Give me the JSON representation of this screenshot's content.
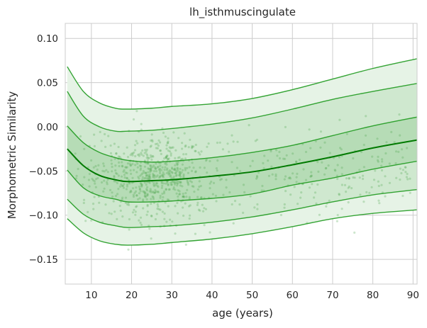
{
  "chart_data": {
    "type": "line",
    "title": "lh_isthmuscingulate",
    "xlabel": "age (years)",
    "ylabel": "Morphometric Similarity",
    "xlim": [
      3.5,
      91
    ],
    "ylim": [
      -0.178,
      0.117
    ],
    "x_ticks": [
      10,
      20,
      30,
      40,
      50,
      60,
      70,
      80,
      90
    ],
    "y_ticks": [
      -0.15,
      -0.1,
      -0.05,
      0.0,
      0.05,
      0.1
    ],
    "y_tick_labels": [
      "−0.15",
      "−0.10",
      "−0.05",
      "0.00",
      "0.05",
      "0.10"
    ],
    "grid": true,
    "x": [
      4,
      8,
      12,
      16,
      19,
      25,
      30,
      40,
      50,
      60,
      70,
      80,
      91
    ],
    "series": [
      {
        "role": "upper-outer",
        "values": [
          0.068,
          0.04,
          0.027,
          0.021,
          0.02,
          0.021,
          0.023,
          0.026,
          0.032,
          0.042,
          0.054,
          0.066,
          0.077
        ]
      },
      {
        "role": "upper-middle",
        "values": [
          0.04,
          0.012,
          0.0,
          -0.005,
          -0.005,
          -0.004,
          -0.002,
          0.003,
          0.01,
          0.02,
          0.031,
          0.04,
          0.049
        ]
      },
      {
        "role": "upper-inner",
        "values": [
          0.001,
          -0.018,
          -0.029,
          -0.035,
          -0.038,
          -0.04,
          -0.039,
          -0.035,
          -0.029,
          -0.021,
          -0.01,
          0.001,
          0.011
        ]
      },
      {
        "role": "median",
        "values": [
          -0.025,
          -0.044,
          -0.055,
          -0.06,
          -0.062,
          -0.061,
          -0.06,
          -0.056,
          -0.051,
          -0.043,
          -0.034,
          -0.024,
          -0.015
        ]
      },
      {
        "role": "lower-inner",
        "values": [
          -0.049,
          -0.069,
          -0.078,
          -0.082,
          -0.085,
          -0.085,
          -0.084,
          -0.081,
          -0.076,
          -0.066,
          -0.058,
          -0.048,
          -0.039
        ]
      },
      {
        "role": "lower-middle",
        "values": [
          -0.082,
          -0.099,
          -0.108,
          -0.112,
          -0.114,
          -0.113,
          -0.112,
          -0.108,
          -0.102,
          -0.094,
          -0.085,
          -0.077,
          -0.071
        ]
      },
      {
        "role": "lower-outer",
        "values": [
          -0.104,
          -0.12,
          -0.129,
          -0.133,
          -0.134,
          -0.133,
          -0.131,
          -0.127,
          -0.121,
          -0.113,
          -0.104,
          -0.098,
          -0.094
        ]
      }
    ],
    "scatter": {
      "n": 900,
      "age_range": [
        6,
        90
      ],
      "age_mode": 26,
      "value_mean": -0.058,
      "value_sd": 0.024
    },
    "colors": {
      "line": "#1f9a1f",
      "median": "#007a00",
      "band_outer": "#e6f3e6",
      "band_middle": "#cfe8cf",
      "band_inner": "#b6dcb6",
      "points": "#4aa64a",
      "grid": "#cccccc",
      "axes": "#262626"
    }
  }
}
